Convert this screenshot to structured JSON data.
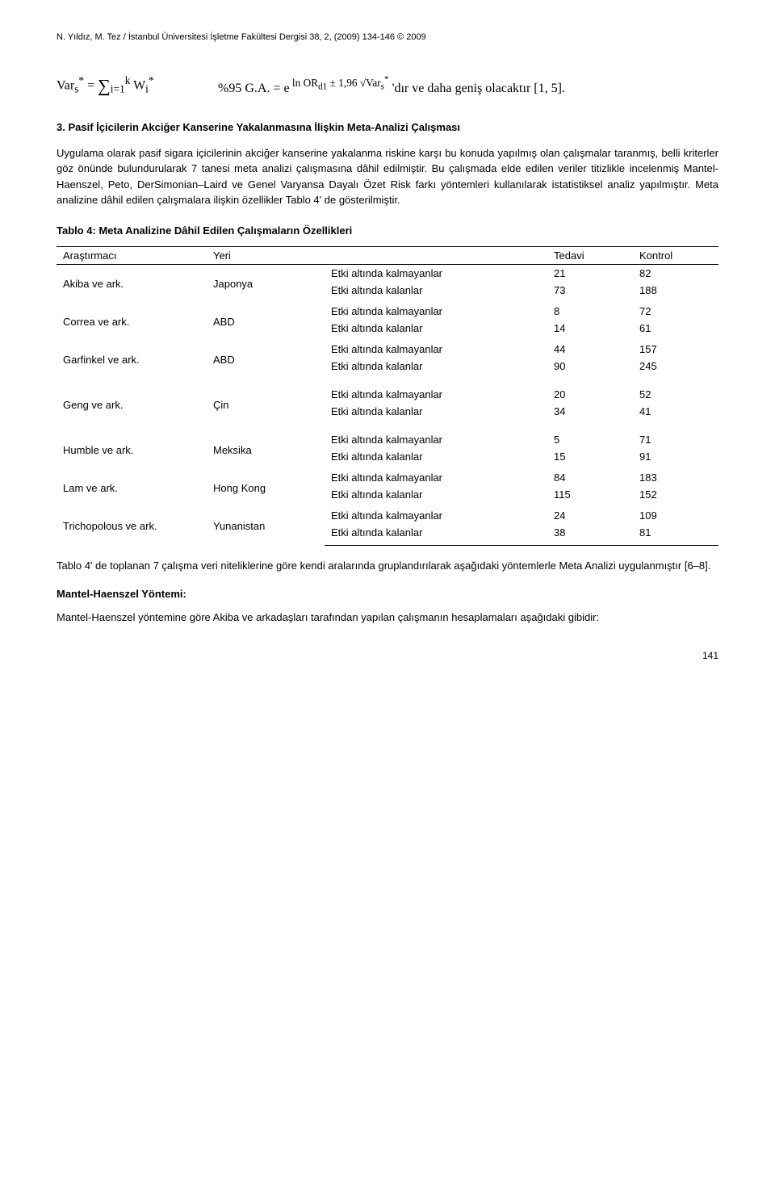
{
  "header": "N. Yıldız, M. Tez / İstanbul Üniversitesi İşletme Fakültesi Dergisi 38, 2, (2009) 134-146 © 2009",
  "formula": {
    "left_html": "Var<sub>s</sub><sup>*</sup> = <span class='sum-sym'>∑</span><sub>i=1</sub><sup>k</sup> W<sub>i</sub><sup>*</sup>",
    "right_html": "%95 G.A. = e<sup> ln OR<sub>d1</sub> ± 1,96 √Var<sub>s</sub><sup>*</sup></sup> 'dır ve daha geniş olacaktır [1, 5]."
  },
  "section": {
    "num": "3.",
    "title": "Pasif İçicilerin Akciğer Kanserine Yakalanmasına İlişkin Meta-Analizi Çalışması"
  },
  "para1": "Uygulama olarak pasif sigara içicilerinin akciğer kanserine yakalanma riskine karşı bu konuda yapılmış olan çalışmalar taranmış, belli kriterler göz önünde bulundurularak 7 tanesi meta analizi çalışmasına dâhil edilmiştir. Bu çalışmada elde edilen veriler titizlikle incelenmiş Mantel-Haenszel, Peto, DerSimonian–Laird ve Genel Varyansa Dayalı Özet Risk farkı yöntemleri kullanılarak istatistiksel analiz yapılmıştır. Meta analizine dâhil edilen çalışmalara ilişkin özellikler Tablo 4' de gösterilmiştir.",
  "table_title": "Tablo 4: Meta Analizine Dâhil Edilen Çalışmaların Özellikleri",
  "table": {
    "headers": [
      "Araştırmacı",
      "Yeri",
      "",
      "Tedavi",
      "Kontrol"
    ],
    "label_kalmayanlar": "Etki altında kalmayanlar",
    "label_kalanlar": "Etki altında kalanlar",
    "groups": [
      {
        "arast": "Akiba ve ark.",
        "yeri": "Japonya",
        "r1": [
          "21",
          "82"
        ],
        "r2": [
          "73",
          "188"
        ]
      },
      {
        "arast": "Correa ve ark.",
        "yeri": "ABD",
        "r1": [
          "8",
          "72"
        ],
        "r2": [
          "14",
          "61"
        ]
      },
      {
        "arast": "Garfinkel ve ark.",
        "yeri": "ABD",
        "r1": [
          "44",
          "157"
        ],
        "r2": [
          "90",
          "245"
        ]
      },
      {
        "arast": "Geng ve ark.",
        "yeri": "Çin",
        "r1": [
          "20",
          "52"
        ],
        "r2": [
          "34",
          "41"
        ]
      },
      {
        "arast": "Humble ve ark.",
        "yeri": "Meksika",
        "r1": [
          "5",
          "71"
        ],
        "r2": [
          "15",
          "91"
        ]
      },
      {
        "arast": "Lam ve ark.",
        "yeri": "Hong Kong",
        "r1": [
          "84",
          "183"
        ],
        "r2": [
          "115",
          "152"
        ]
      },
      {
        "arast": "Trichopolous ve ark.",
        "yeri": "Yunanistan",
        "r1": [
          "24",
          "109"
        ],
        "r2": [
          "38",
          "81"
        ]
      }
    ]
  },
  "para2": "Tablo 4' de toplanan 7 çalışma veri niteliklerine göre kendi aralarında gruplandırılarak aşağıdaki yöntemlerle Meta Analizi uygulanmıştır [6–8].",
  "subsection": "Mantel-Haenszel Yöntemi:",
  "para3": "Mantel-Haenszel yöntemine göre Akiba ve arkadaşları tarafından yapılan çalışmanın hesaplamaları aşağıdaki gibidir:",
  "page_num": "141"
}
